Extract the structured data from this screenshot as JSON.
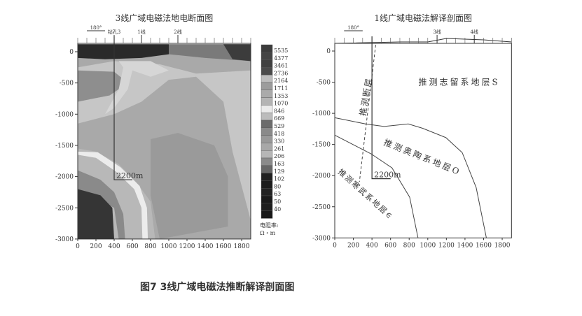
{
  "caption": "图7 3线广域电磁法推断解译剖面图",
  "chart_data": [
    {
      "type": "heatmap",
      "title": "3线广域电磁法地电断面图",
      "x_ticks": [
        0,
        200,
        400,
        600,
        800,
        1000,
        1200,
        1400,
        1600,
        1800
      ],
      "y_ticks": [
        0,
        -500,
        -1000,
        -1500,
        -2000,
        -2500,
        -3000
      ],
      "xlim": [
        0,
        1900
      ],
      "ylim": [
        -3000,
        0
      ],
      "azimuth_label": "180°",
      "markers": [
        {
          "label": "钻孔3",
          "x": 400
        },
        {
          "label": "1线",
          "x": 700
        },
        {
          "label": "2线",
          "x": 1100
        }
      ],
      "borehole": {
        "x": 400,
        "depth": -2050,
        "label": "2200m"
      },
      "colorbar": {
        "title_line1": "电阻率:",
        "title_line2": "Ω・m",
        "levels": [
          5535,
          4377,
          3461,
          2736,
          2164,
          1711,
          1353,
          1070,
          846,
          669,
          529,
          418,
          330,
          261,
          206,
          163,
          129,
          102,
          80,
          63,
          50,
          40
        ],
        "colors": [
          "#3c3c3c",
          "#444444",
          "#404040",
          "#4a4a4a",
          "#bdbdbd",
          "#9c9c9c",
          "#aaaaaa",
          "#b4b4b4",
          "#ebebeb",
          "#bcbcbc",
          "#6c6c6c",
          "#8a8a8a",
          "#999999",
          "#a8a8a8",
          "#b6b6b6",
          "#8a8a8a",
          "#666666",
          "#202020",
          "#1c1c1c",
          "#222222",
          "#1a1a1a",
          "#1e1e1e",
          "#181818"
        ]
      }
    },
    {
      "type": "line",
      "title": "1线广域电磁法解译剖面图",
      "x_ticks": [
        0,
        200,
        400,
        600,
        800,
        1000,
        1200,
        1400,
        1600,
        1800
      ],
      "y_ticks": [
        0,
        -500,
        -1000,
        -1500,
        -2000,
        -2500,
        -3000
      ],
      "xlim": [
        0,
        1900
      ],
      "ylim": [
        -3000,
        0
      ],
      "azimuth_label": "180°",
      "markers": [
        {
          "label": "3线",
          "x": 1100
        },
        {
          "label": "4线",
          "x": 1500
        }
      ],
      "borehole": {
        "x": 400,
        "depth": -2050,
        "label": "2200m"
      },
      "series": [
        {
          "name": "S/O boundary",
          "points": [
            [
              0,
              -1070
            ],
            [
              330,
              -1170
            ],
            [
              530,
              -1210
            ],
            [
              790,
              -1170
            ],
            [
              945,
              -1240
            ],
            [
              1195,
              -1390
            ],
            [
              1370,
              -1630
            ],
            [
              1520,
              -2190
            ],
            [
              1630,
              -3000
            ]
          ]
        },
        {
          "name": "O/∈ boundary",
          "points": [
            [
              0,
              -1350
            ],
            [
              390,
              -1650
            ],
            [
              615,
              -1875
            ],
            [
              805,
              -2345
            ],
            [
              895,
              -3000
            ]
          ]
        }
      ],
      "fault": {
        "points": [
          [
            440,
            100
          ],
          [
            265,
            -2100
          ]
        ],
        "label": "推测断层"
      },
      "annotations": [
        "推测志留系地层S",
        "推测奥陶系地层O",
        "推测寒武系地层∈"
      ]
    }
  ]
}
